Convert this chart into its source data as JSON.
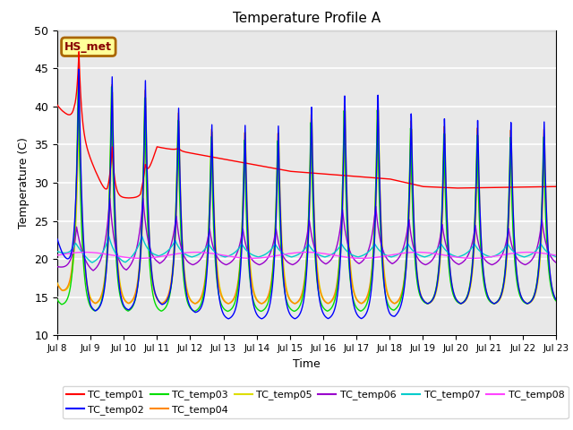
{
  "title": "Temperature Profile A",
  "xlabel": "Time",
  "ylabel": "Temperature (C)",
  "xlim": [
    0,
    15
  ],
  "ylim": [
    10,
    50
  ],
  "bg_color": "#e8e8e8",
  "annotation_text": "HS_met",
  "annotation_bg": "#ffff99",
  "annotation_border": "#aa6600",
  "annotation_text_color": "#880000",
  "series_colors": {
    "TC_temp01": "#ff0000",
    "TC_temp02": "#0000ff",
    "TC_temp03": "#00dd00",
    "TC_temp04": "#ff8800",
    "TC_temp05": "#dddd00",
    "TC_temp06": "#9900cc",
    "TC_temp07": "#00cccc",
    "TC_temp08": "#ff44ff"
  },
  "xtick_labels": [
    "Jul 8",
    "Jul 9",
    "Jul 10",
    "Jul 11",
    "Jul 12",
    "Jul 13",
    "Jul 14",
    "Jul 15",
    "Jul 16",
    "Jul 17",
    "Jul 18",
    "Jul 19",
    "Jul 20",
    "Jul 21",
    "Jul 22",
    "Jul 23"
  ],
  "ytick_values": [
    10,
    15,
    20,
    25,
    30,
    35,
    40,
    45,
    50
  ],
  "figsize": [
    6.4,
    4.8
  ],
  "dpi": 100
}
